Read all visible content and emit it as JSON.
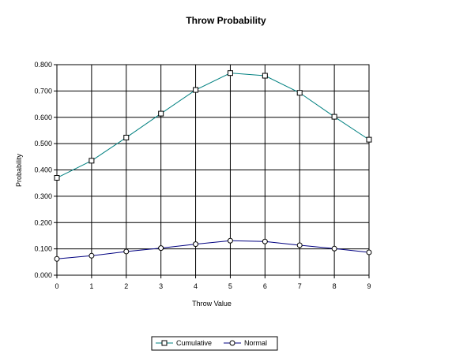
{
  "chart_data": {
    "type": "line",
    "title": "Throw Probability",
    "xlabel": "Throw Value",
    "ylabel": "Probability",
    "x": [
      0,
      1,
      2,
      3,
      4,
      5,
      6,
      7,
      8,
      9
    ],
    "x_tick_labels": [
      "0",
      "1",
      "2",
      "3",
      "4",
      "5",
      "6",
      "7",
      "8",
      "9"
    ],
    "y_tick_labels": [
      "0.000",
      "0.100",
      "0.200",
      "0.300",
      "0.400",
      "0.500",
      "0.600",
      "0.700",
      "0.800"
    ],
    "ylim": [
      0,
      0.8
    ],
    "xlim": [
      0,
      9
    ],
    "grid": true,
    "legend_position": "bottom",
    "series": [
      {
        "name": "Cumulative",
        "marker": "square",
        "color": "#008080",
        "values": [
          0.37,
          0.435,
          0.523,
          0.614,
          0.704,
          0.768,
          0.758,
          0.693,
          0.602,
          0.515
        ]
      },
      {
        "name": "Normal",
        "marker": "circle",
        "color": "#000080",
        "values": [
          0.062,
          0.074,
          0.09,
          0.103,
          0.118,
          0.131,
          0.128,
          0.114,
          0.101,
          0.087
        ]
      }
    ]
  }
}
